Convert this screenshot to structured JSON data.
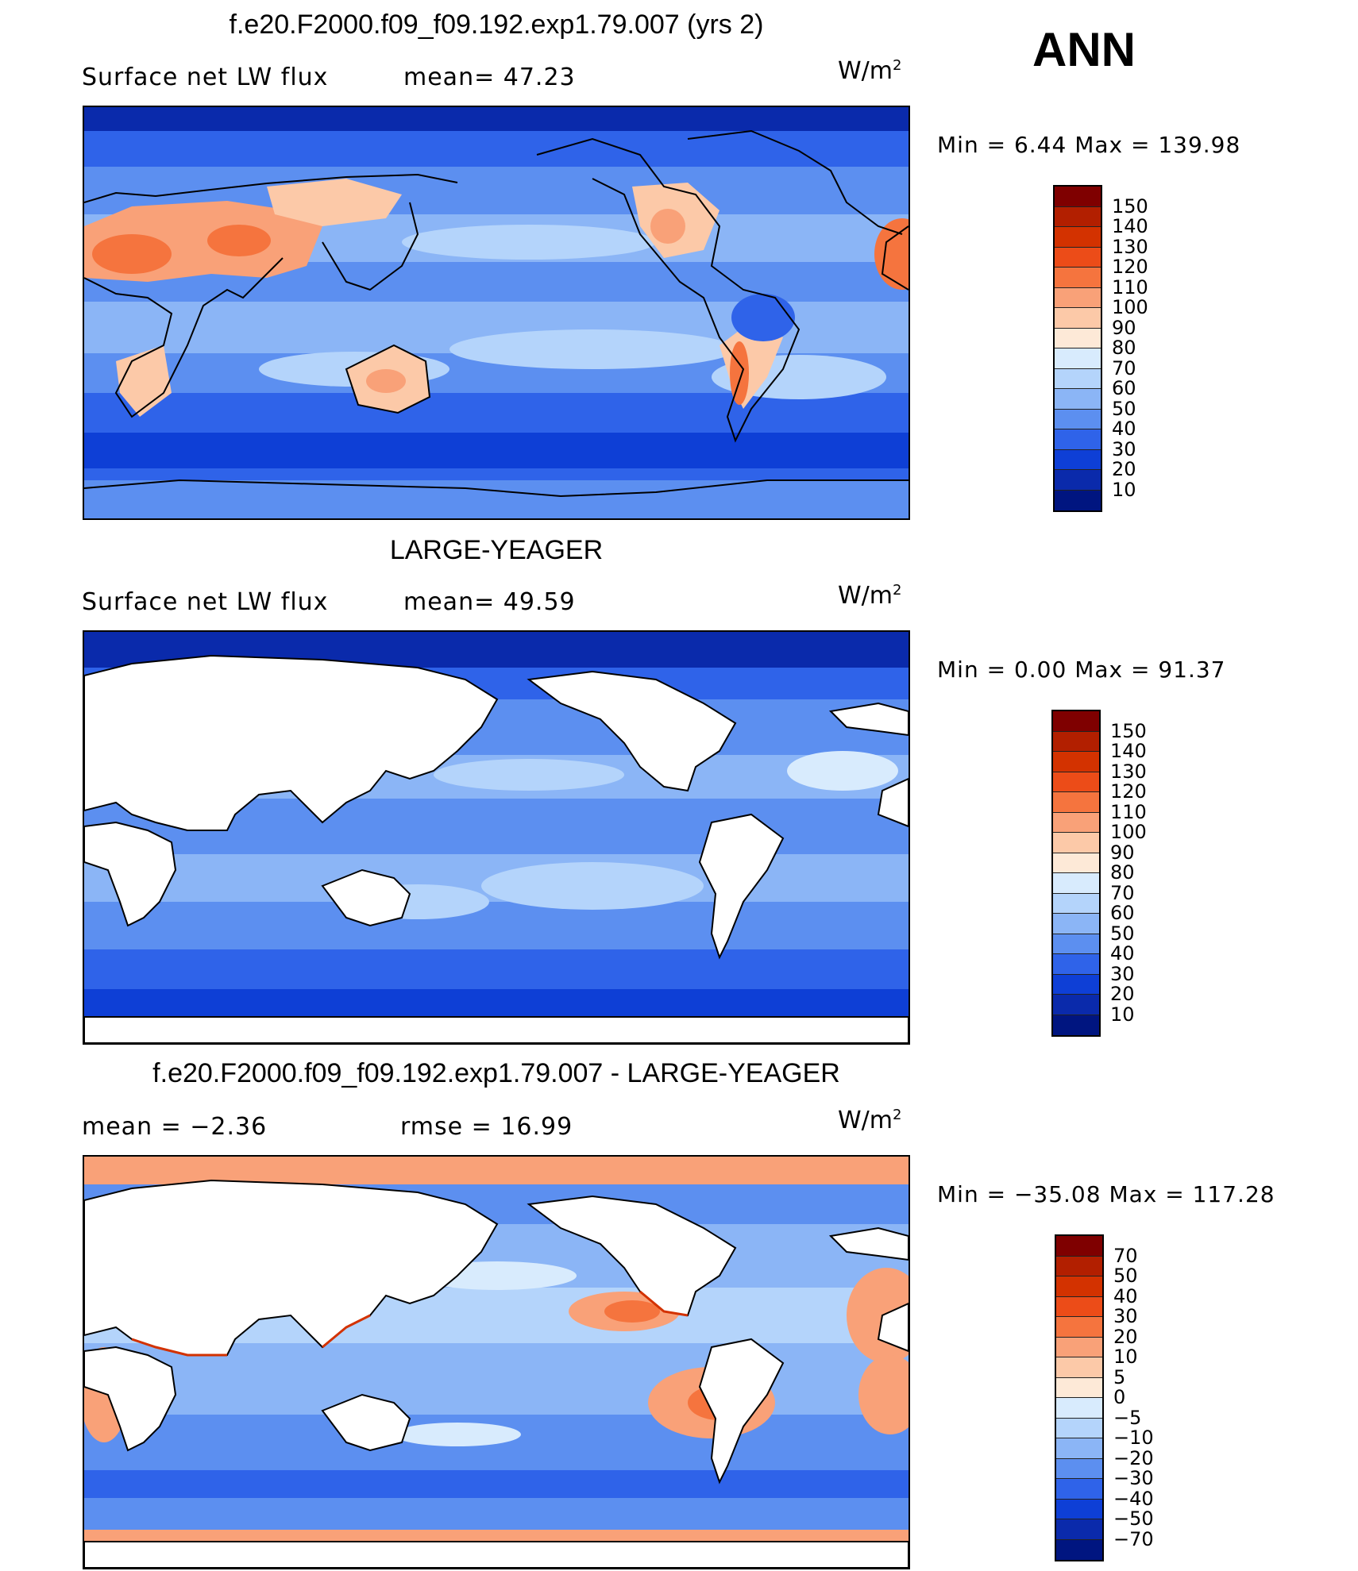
{
  "season": "ANN",
  "panels": [
    {
      "id": "model",
      "title": "f.e20.F2000.f09_f09.192.exp1.79.007 (yrs 2)",
      "left_label": "Surface net LW flux",
      "stat1": "mean=  47.23",
      "stat2": "",
      "units": "W/m",
      "units_sup": "2",
      "minmax": "Min =    6.44 Max = 139.98",
      "land_masked": false,
      "colorbar": {
        "levels": [
          "150",
          "140",
          "130",
          "120",
          "110",
          "100",
          "90",
          "80",
          "70",
          "60",
          "50",
          "40",
          "30",
          "20",
          "10"
        ],
        "colors": [
          "#7f0000",
          "#b21f00",
          "#d33200",
          "#ec4c18",
          "#f5743e",
          "#f9a178",
          "#fcc9a8",
          "#fde9d7",
          "#d8ebfd",
          "#b4d4fb",
          "#8bb5f6",
          "#5c8ff0",
          "#2f63e9",
          "#0e3fd6",
          "#0a2aab",
          "#001580"
        ]
      }
    },
    {
      "id": "obs",
      "title": "LARGE-YEAGER",
      "left_label": "Surface net LW flux",
      "stat1": "mean=  49.59",
      "stat2": "",
      "units": "W/m",
      "units_sup": "2",
      "minmax": "Min =    0.00 Max =   91.37",
      "land_masked": true,
      "colorbar": {
        "levels": [
          "150",
          "140",
          "130",
          "120",
          "110",
          "100",
          "90",
          "80",
          "70",
          "60",
          "50",
          "40",
          "30",
          "20",
          "10"
        ],
        "colors": [
          "#7f0000",
          "#b21f00",
          "#d33200",
          "#ec4c18",
          "#f5743e",
          "#f9a178",
          "#fcc9a8",
          "#fde9d7",
          "#d8ebfd",
          "#b4d4fb",
          "#8bb5f6",
          "#5c8ff0",
          "#2f63e9",
          "#0e3fd6",
          "#0a2aab",
          "#001580"
        ]
      }
    },
    {
      "id": "diff",
      "title": "f.e20.F2000.f09_f09.192.exp1.79.007 - LARGE-YEAGER",
      "left_label": "mean =   −2.36",
      "stat1": "rmse =   16.99",
      "stat2": "",
      "units": "W/m",
      "units_sup": "2",
      "minmax": "Min = −35.08 Max = 117.28",
      "land_masked": true,
      "colorbar": {
        "levels": [
          "70",
          "50",
          "40",
          "30",
          "20",
          "10",
          "5",
          "0",
          "−5",
          "−10",
          "−20",
          "−30",
          "−40",
          "−50",
          "−70"
        ],
        "colors": [
          "#7f0000",
          "#b21f00",
          "#d33200",
          "#ec4c18",
          "#f5743e",
          "#f9a178",
          "#fcc9a8",
          "#fde9d7",
          "#d8ebfd",
          "#b4d4fb",
          "#8bb5f6",
          "#5c8ff0",
          "#2f63e9",
          "#0e3fd6",
          "#0a2aab",
          "#001580"
        ]
      }
    }
  ]
}
